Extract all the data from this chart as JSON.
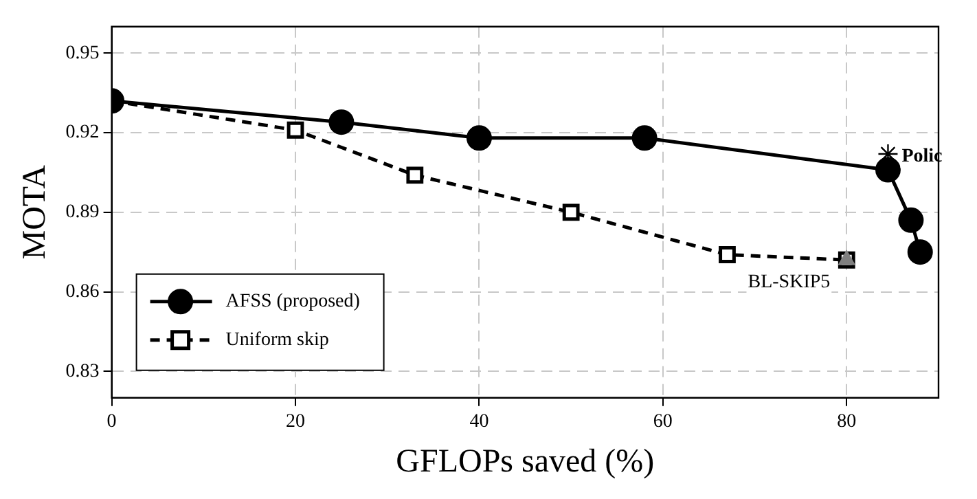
{
  "chart_data": {
    "type": "line",
    "xlabel": "GFLOPs saved (%)",
    "ylabel": "MOTA",
    "xlim": [
      0,
      90
    ],
    "xticks": [
      0,
      20,
      40,
      60,
      80
    ],
    "ylim": [
      0.82,
      0.96
    ],
    "yticks": [
      0.83,
      0.86,
      0.89,
      0.92,
      0.95
    ],
    "grid": true,
    "legend": "bottom left",
    "series": [
      {
        "name": "AFSS (proposed)",
        "color": "#000000",
        "marker": "circle",
        "line_style": "solid",
        "x": [
          0,
          25,
          40,
          58,
          84.5,
          87,
          88
        ],
        "values": [
          0.932,
          0.924,
          0.918,
          0.918,
          0.906,
          0.887,
          0.875
        ]
      },
      {
        "name": "Uniform skip",
        "color": "#000000",
        "marker": "square",
        "line_style": "dashed",
        "x": [
          0,
          20,
          33,
          50,
          67,
          80
        ],
        "values": [
          0.932,
          0.921,
          0.904,
          0.89,
          0.874,
          0.872
        ]
      },
      {
        "type": "scatter",
        "color": "#808080",
        "marker": "triangle",
        "x": [
          80
        ],
        "values": [
          0.872
        ]
      },
      {
        "type": "scatter",
        "color": "#000000",
        "marker": "cross",
        "x": [
          84.5
        ],
        "values": [
          0.912
        ]
      }
    ],
    "annotations": [
      {
        "text": "BL-SKIP5",
        "x": 80,
        "y": 0.872
      },
      {
        "text": "Polic",
        "x": 84.5,
        "y": 0.912
      }
    ]
  }
}
